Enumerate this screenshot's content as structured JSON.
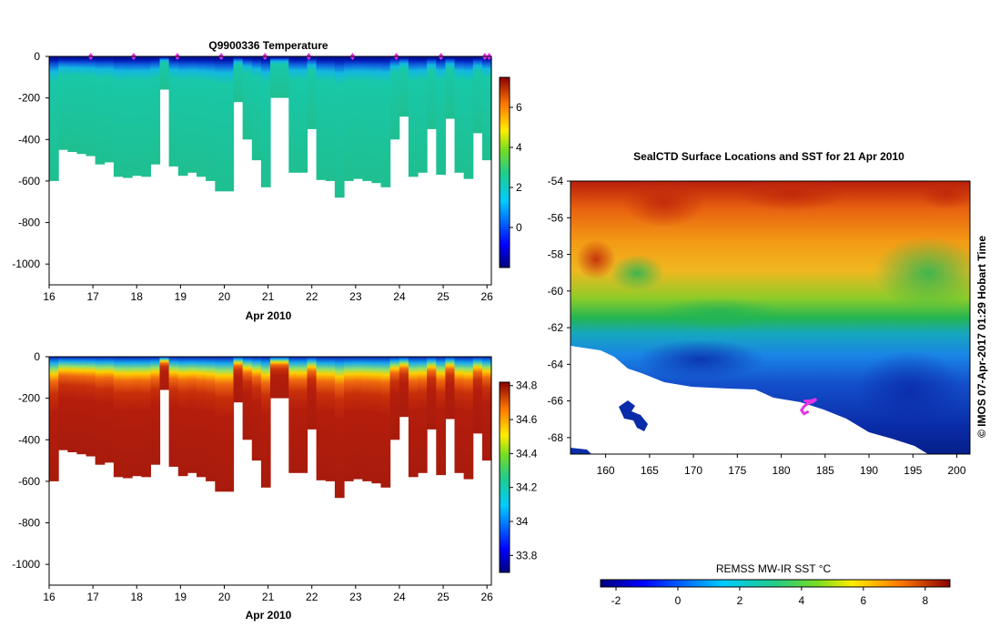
{
  "chart_data": [
    {
      "type": "heatmap",
      "title": "Q9900336  Temperature",
      "xlabel": "Apr 2010",
      "ylabel": "",
      "x_tick_labels": [
        "16",
        "17",
        "18",
        "19",
        "20",
        "21",
        "22",
        "23",
        "24",
        "25",
        "26"
      ],
      "xlim": [
        16,
        26.1
      ],
      "y_tick_labels": [
        "0",
        "-200",
        "-400",
        "-600",
        "-800",
        "-1000"
      ],
      "ylim": [
        -1100,
        0
      ],
      "colorbar": {
        "ticks": [
          "6",
          "4",
          "2",
          "0"
        ],
        "range": [
          -2,
          7.5
        ]
      },
      "profile_max_depth_m": [
        600,
        450,
        460,
        470,
        480,
        520,
        510,
        580,
        585,
        575,
        580,
        520,
        160,
        530,
        575,
        560,
        580,
        600,
        650,
        650,
        220,
        400,
        500,
        630,
        200,
        200,
        560,
        560,
        350,
        595,
        600,
        680,
        600,
        590,
        600,
        610,
        630,
        400,
        290,
        580,
        560,
        350,
        570,
        300,
        560,
        590,
        370,
        500
      ],
      "profile_casts": [
        16.95,
        17.93,
        18.93,
        19.93,
        20.93,
        21.93,
        22.93,
        23.93,
        24.95,
        25.95,
        26.05
      ]
    },
    {
      "type": "heatmap",
      "title": "",
      "xlabel": "Apr 2010",
      "ylabel": "",
      "x_tick_labels": [
        "16",
        "17",
        "18",
        "19",
        "20",
        "21",
        "22",
        "23",
        "24",
        "25",
        "26"
      ],
      "xlim": [
        16,
        26.1
      ],
      "y_tick_labels": [
        "0",
        "-200",
        "-400",
        "-600",
        "-800",
        "-1000"
      ],
      "ylim": [
        -1100,
        0
      ],
      "colorbar": {
        "ticks": [
          "34.8",
          "34.6",
          "34.4",
          "34.2",
          "34",
          "33.8"
        ],
        "range": [
          33.7,
          34.82
        ]
      }
    },
    {
      "type": "heatmap",
      "title": "SealCTD Surface Locations and SST for 21 Apr 2010",
      "xlabel": "",
      "ylabel": "",
      "x_tick_labels": [
        "160",
        "165",
        "170",
        "175",
        "180",
        "185",
        "190",
        "195",
        "200"
      ],
      "xlim": [
        156,
        201.5
      ],
      "y_tick_labels": [
        "-54",
        "-56",
        "-58",
        "-60",
        "-62",
        "-64",
        "-66",
        "-68"
      ],
      "ylim": [
        -68.9,
        -54
      ],
      "colorbar": {
        "label": "REMSS MW-IR SST °C",
        "ticks": [
          "-2",
          "0",
          "2",
          "4",
          "6",
          "8"
        ],
        "range": [
          -2.5,
          8.8
        ]
      },
      "track_points": [
        [
          182.7,
          -66.0
        ],
        [
          183.2,
          -66.0
        ],
        [
          183.7,
          -65.95
        ],
        [
          184.0,
          -65.9
        ],
        [
          183.6,
          -66.05
        ],
        [
          183.0,
          -66.15
        ],
        [
          182.6,
          -66.3
        ],
        [
          182.3,
          -66.5
        ],
        [
          182.6,
          -66.7
        ],
        [
          183.0,
          -66.6
        ]
      ]
    }
  ],
  "credit": "© IMOS 07-Apr-2017 01:29 Hobart Time",
  "colors": {
    "marker": "#e633e6",
    "land": "#ffffff",
    "frame": "#000000"
  }
}
